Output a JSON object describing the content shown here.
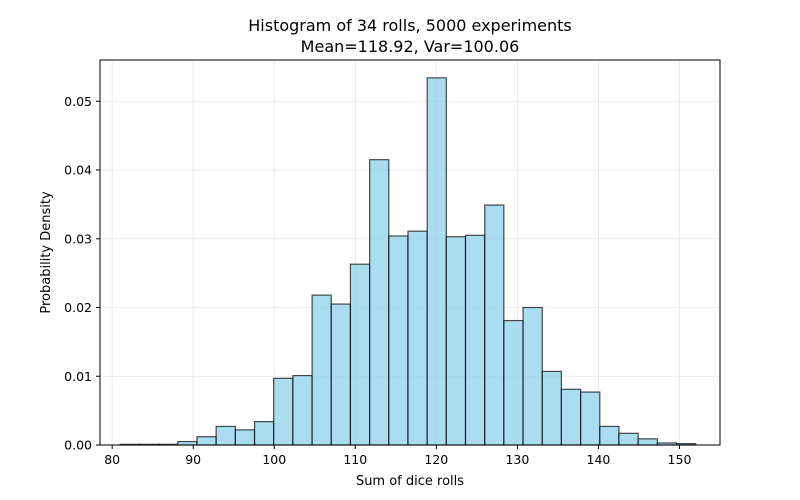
{
  "chart_data": {
    "type": "bar",
    "title": "Histogram of 34 rolls, 5000 experiments",
    "subtitle": "Mean=118.92, Var=100.06",
    "xlabel": "Sum of dice rolls",
    "ylabel": "Probability Density",
    "xlim": [
      78.5,
      155
    ],
    "ylim": [
      0,
      0.056
    ],
    "xticks": [
      80,
      90,
      100,
      110,
      120,
      130,
      140,
      150
    ],
    "xtick_labels": [
      "80",
      "90",
      "100",
      "110",
      "120",
      "130",
      "140",
      "150"
    ],
    "yticks": [
      0.0,
      0.01,
      0.02,
      0.03,
      0.04,
      0.05
    ],
    "ytick_labels": [
      "0.00",
      "0.01",
      "0.02",
      "0.03",
      "0.04",
      "0.05"
    ],
    "grid": true,
    "bin_edges": [
      81.0,
      83.37,
      85.73,
      88.1,
      90.47,
      92.83,
      95.2,
      97.57,
      99.93,
      102.3,
      104.67,
      107.03,
      109.4,
      111.77,
      114.13,
      116.5,
      118.87,
      121.23,
      123.6,
      125.97,
      128.33,
      130.7,
      133.07,
      135.43,
      137.8,
      140.17,
      142.53,
      144.9,
      147.27,
      149.63,
      152.0
    ],
    "densities": [
      0.0001,
      0.0001,
      0.0001,
      0.0005,
      0.0012,
      0.0027,
      0.0022,
      0.0034,
      0.0097,
      0.0101,
      0.0218,
      0.0205,
      0.0263,
      0.0415,
      0.0304,
      0.0311,
      0.0534,
      0.0303,
      0.0305,
      0.0349,
      0.0181,
      0.02,
      0.0107,
      0.0081,
      0.0077,
      0.0027,
      0.0017,
      0.0009,
      0.0003,
      0.0002
    ],
    "colors": {
      "bar_fill": "#87ceeb",
      "bar_edge": "#000000",
      "grid": "#b0b0b0",
      "axis": "#000000"
    }
  }
}
